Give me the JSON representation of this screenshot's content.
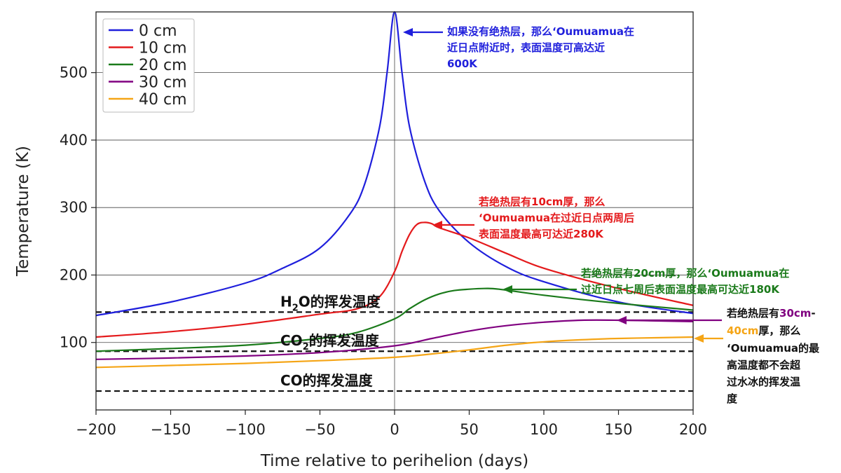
{
  "chart_data": {
    "type": "line",
    "xlabel": "Time relative to perihelion (days)",
    "ylabel": "Temperature (K)",
    "xlim": [
      -200,
      200
    ],
    "ylim": [
      0,
      590
    ],
    "xticks": [
      -200,
      -150,
      -100,
      -50,
      0,
      50,
      100,
      150,
      200
    ],
    "xtick_labels": [
      "−200",
      "−150",
      "−100",
      "−50",
      "0",
      "50",
      "100",
      "150",
      "200"
    ],
    "yticks": [
      100,
      200,
      300,
      400,
      500
    ],
    "ytick_labels": [
      "100",
      "200",
      "300",
      "400",
      "500"
    ],
    "grid": "horizontal lines at y ticks plus vertical line at x=0",
    "legend_position": "top-left",
    "series": [
      {
        "name": "0 cm",
        "color": "#1f1fdc",
        "x": [
          -200,
          -150,
          -100,
          -75,
          -50,
          -30,
          -20,
          -10,
          -5,
          0,
          5,
          10,
          20,
          30,
          50,
          75,
          100,
          150,
          200
        ],
        "y": [
          140,
          160,
          188,
          210,
          240,
          290,
          335,
          420,
          500,
          590,
          500,
          420,
          340,
          295,
          248,
          212,
          190,
          160,
          143
        ]
      },
      {
        "name": "10 cm",
        "color": "#e41a1c",
        "x": [
          -200,
          -150,
          -100,
          -50,
          -25,
          -10,
          0,
          5,
          10,
          15,
          20,
          25,
          30,
          50,
          75,
          100,
          150,
          200
        ],
        "y": [
          108,
          116,
          127,
          142,
          150,
          168,
          205,
          235,
          260,
          275,
          278,
          276,
          270,
          255,
          232,
          210,
          180,
          155
        ]
      },
      {
        "name": "20 cm",
        "color": "#1a7a1a",
        "x": [
          -200,
          -150,
          -100,
          -50,
          -25,
          0,
          10,
          20,
          30,
          40,
          50,
          60,
          70,
          100,
          150,
          200
        ],
        "y": [
          87,
          91,
          96,
          106,
          115,
          135,
          150,
          163,
          172,
          177,
          179,
          180,
          179,
          170,
          158,
          148
        ]
      },
      {
        "name": "30 cm",
        "color": "#800080",
        "x": [
          -200,
          -150,
          -100,
          -50,
          0,
          25,
          50,
          75,
          100,
          125,
          150,
          175,
          200
        ],
        "y": [
          75,
          77,
          80,
          85,
          95,
          106,
          117,
          125,
          130,
          133,
          133,
          132,
          131
        ]
      },
      {
        "name": "40 cm",
        "color": "#f5a516",
        "x": [
          -200,
          -150,
          -100,
          -50,
          0,
          25,
          50,
          75,
          100,
          125,
          150,
          175,
          200
        ],
        "y": [
          63,
          66,
          69,
          73,
          78,
          83,
          89,
          96,
          101,
          104,
          106,
          107,
          108
        ]
      }
    ],
    "reference_lines": [
      {
        "y": 145,
        "label_main": "H",
        "label_sub": "2",
        "label_rest": "O的挥发温度",
        "style": "dashed"
      },
      {
        "y": 87,
        "label_main": "CO",
        "label_sub": "2",
        "label_rest": "的挥发温度",
        "style": "dashed"
      },
      {
        "y": 28,
        "label_main": "CO的挥发温度",
        "label_sub": "",
        "label_rest": "",
        "style": "dashed"
      }
    ],
    "annotations": [
      {
        "color": "#1f1fdc",
        "lines": [
          "如果没有绝热层，那么‘Oumuamua在",
          "近日点附近时，表面温度可高达近",
          "600K"
        ]
      },
      {
        "color": "#e41a1c",
        "lines": [
          "若绝热层有10cm厚，那么",
          "‘Oumuamua在过近日点两周后",
          "表面温度最高可达近280K"
        ]
      },
      {
        "color": "#1a7a1a",
        "lines": [
          "若绝热层有20cm厚，那么‘Oumuamua在",
          "过近日点七周后表面温度最高可达近180K"
        ]
      },
      {
        "color": "#111111",
        "highlight_colors": [
          "#800080",
          "#f5a516"
        ],
        "line1_prefix": "若绝热层有",
        "line1_highlight": "30cm",
        "line1_suffix": "-",
        "line2_highlight": "40cm",
        "line2_suffix": "厚，那么",
        "lines_rest": [
          "‘Oumuamua的最",
          "高温度都不会超",
          "过水冰的挥发温",
          "度"
        ]
      }
    ]
  }
}
